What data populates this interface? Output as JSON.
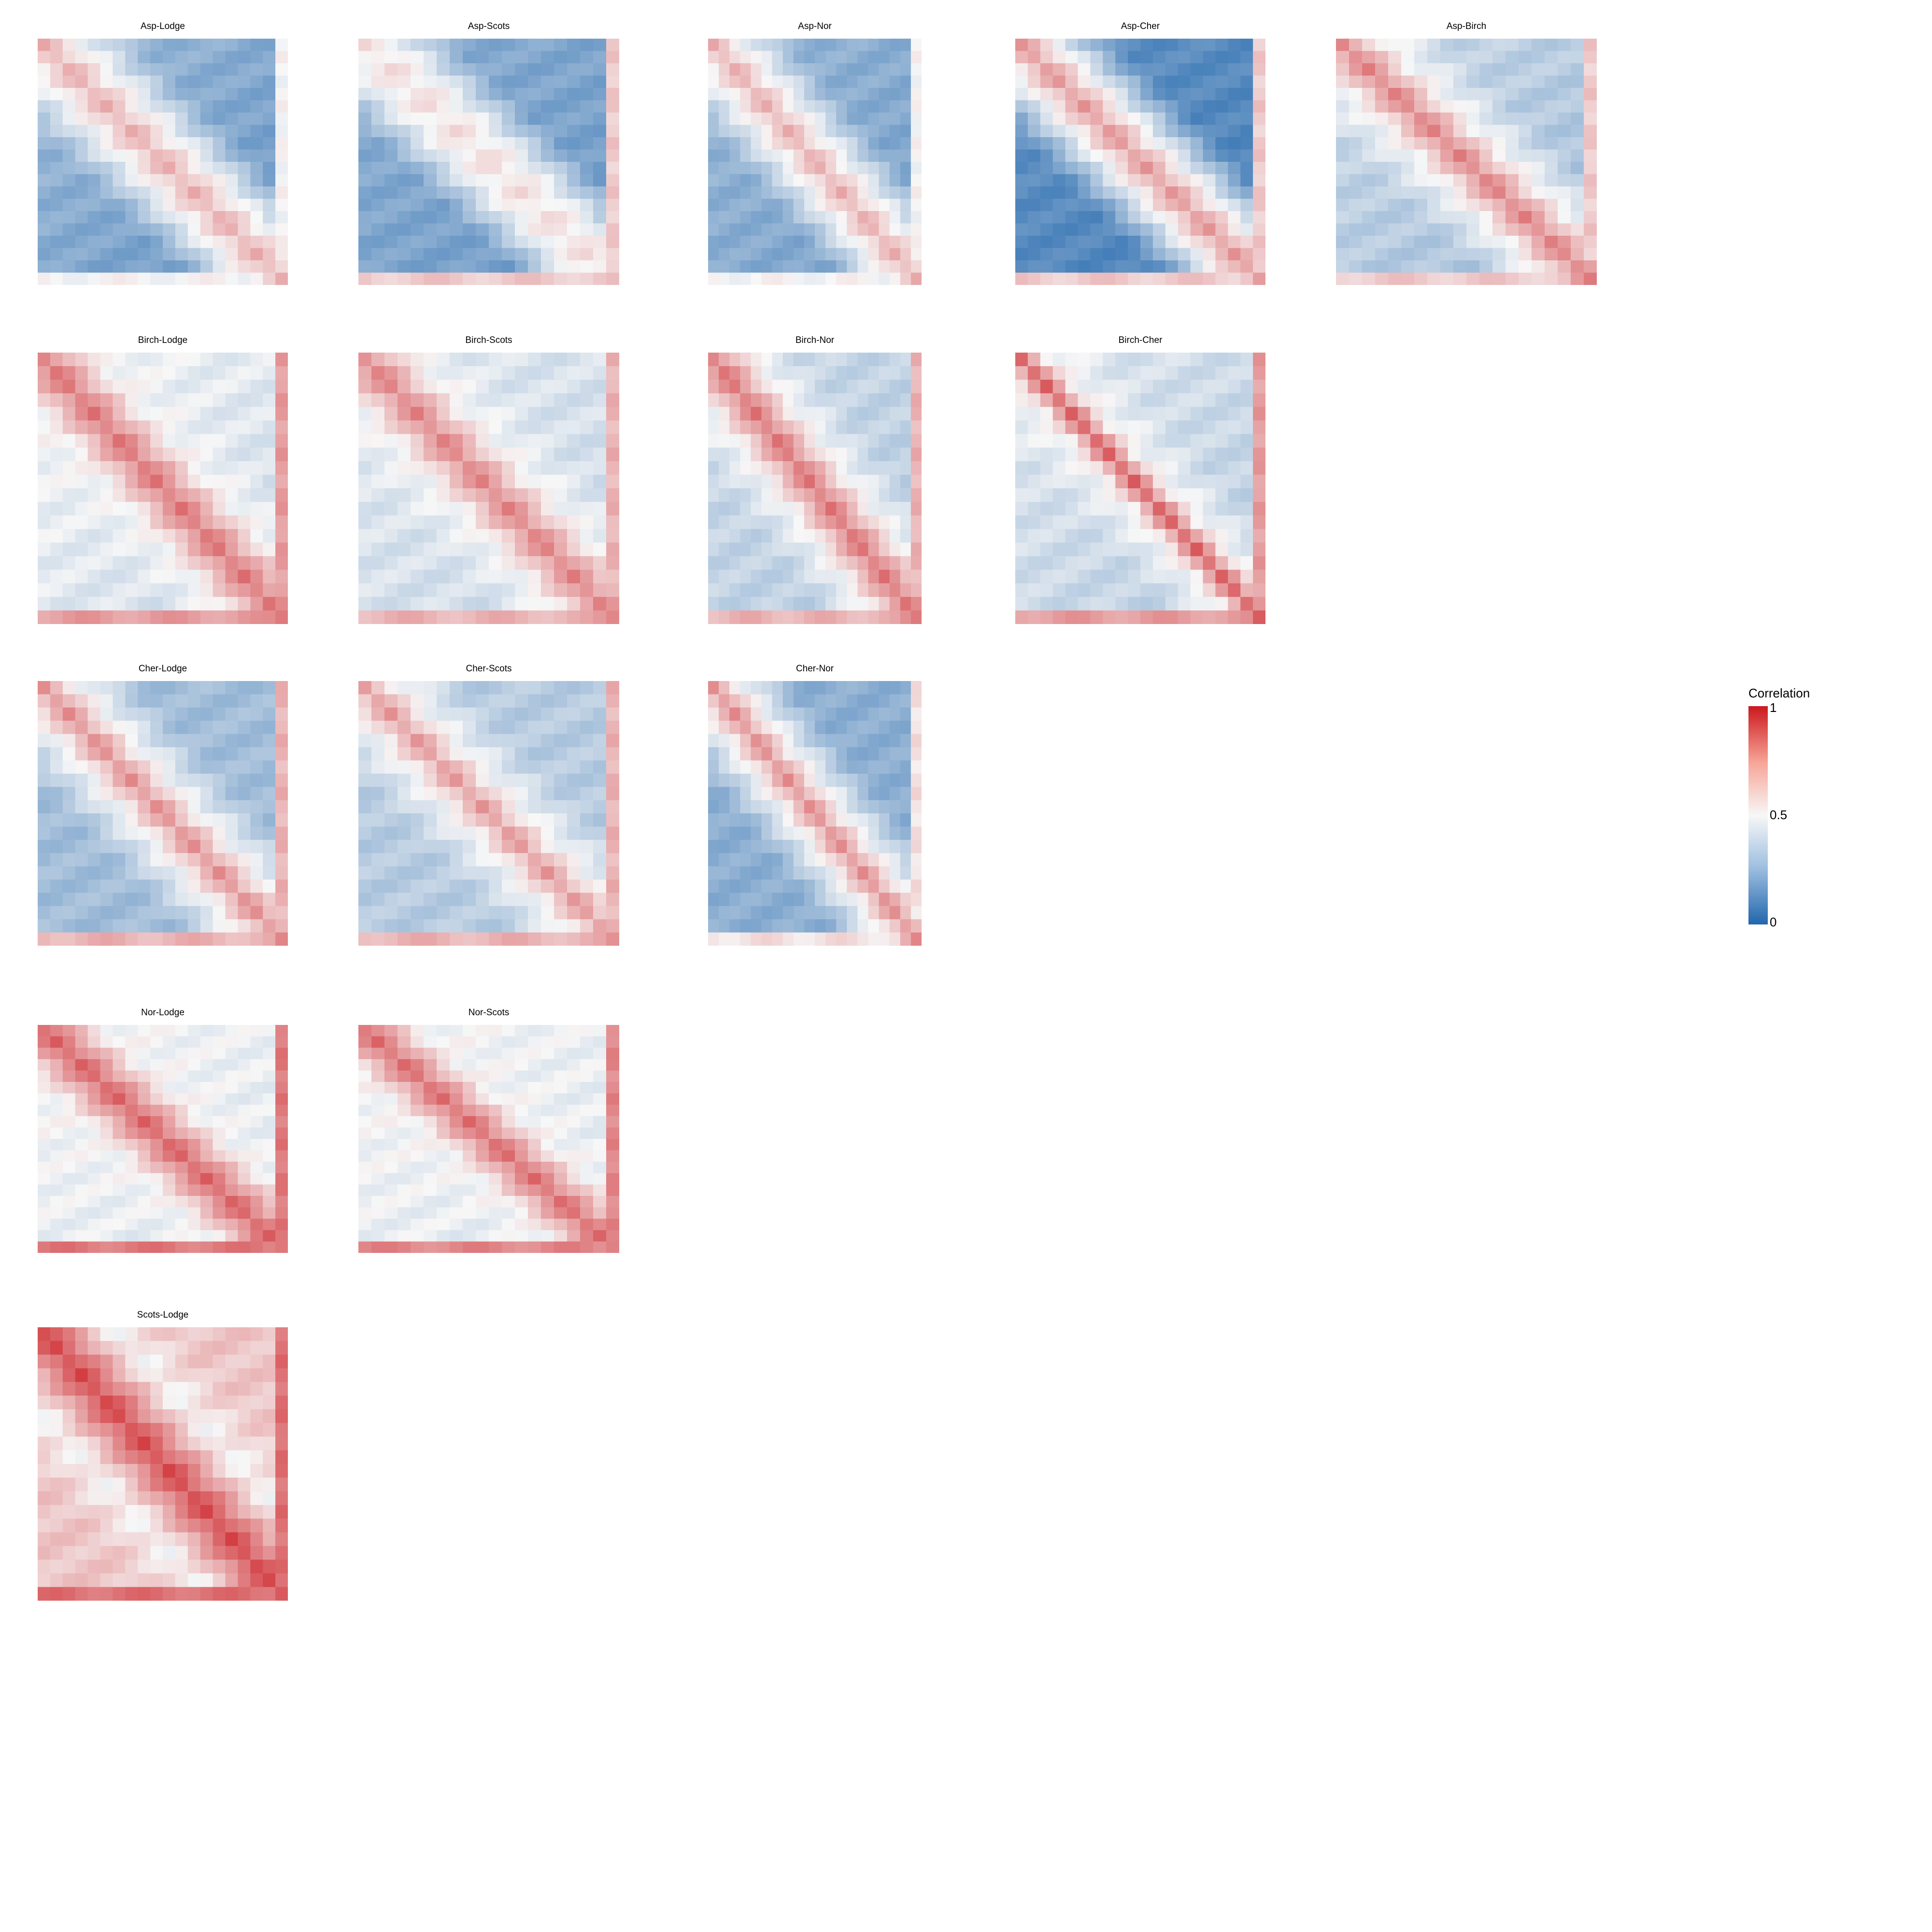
{
  "colors": {
    "low": "#2166ac",
    "mid": "#f7f7f7",
    "high": "#cb181d"
  },
  "legend": {
    "title": "Correlation",
    "max_label": "1",
    "mid_label": "0.5",
    "min_label": "0"
  },
  "chart_data": [
    {
      "type": "heatmap",
      "title": "Asp-Lodge",
      "grid": 20,
      "vmin": 0,
      "vmax": 1,
      "p": [
        0.15,
        0.65,
        0.15,
        0.3,
        0.16,
        0.5
      ]
    },
    {
      "type": "heatmap",
      "title": "Asp-Scots",
      "grid": 20,
      "vmin": 0,
      "vmax": 1,
      "p": [
        0.2,
        0.55,
        0.12,
        0.25,
        0.18,
        0.6
      ]
    },
    {
      "type": "heatmap",
      "title": "Asp-Nor",
      "grid": 20,
      "vmin": 0,
      "vmax": 1,
      "p": [
        0.18,
        0.65,
        0.14,
        0.28,
        0.2,
        0.5
      ]
    },
    {
      "type": "heatmap",
      "title": "Asp-Cher",
      "grid": 20,
      "vmin": 0,
      "vmax": 1,
      "p": [
        0.1,
        0.7,
        0.15,
        0.15,
        0.1,
        0.6
      ]
    },
    {
      "type": "heatmap",
      "title": "Asp-Birch",
      "grid": 20,
      "vmin": 0,
      "vmax": 1,
      "p": [
        0.3,
        0.75,
        0.18,
        0.4,
        0.3,
        0.6
      ]
    },
    {
      "type": "heatmap",
      "title": "Birch-Lodge",
      "grid": 20,
      "vmin": 0,
      "vmax": 1,
      "p": [
        0.4,
        0.78,
        0.22,
        0.5,
        0.4,
        0.7
      ]
    },
    {
      "type": "heatmap",
      "title": "Birch-Scots",
      "grid": 20,
      "vmin": 0,
      "vmax": 1,
      "p": [
        0.4,
        0.75,
        0.2,
        0.45,
        0.4,
        0.65
      ]
    },
    {
      "type": "heatmap",
      "title": "Birch-Nor",
      "grid": 20,
      "vmin": 0,
      "vmax": 1,
      "p": [
        0.4,
        0.78,
        0.2,
        0.4,
        0.35,
        0.65
      ]
    },
    {
      "type": "heatmap",
      "title": "Birch-Cher",
      "grid": 20,
      "vmin": 0,
      "vmax": 1,
      "p": [
        0.3,
        0.82,
        0.12,
        0.45,
        0.35,
        0.7
      ]
    },
    {
      "type": "heatmap",
      "title": "Cher-Lodge",
      "grid": 20,
      "vmin": 0,
      "vmax": 1,
      "p": [
        0.25,
        0.72,
        0.15,
        0.3,
        0.3,
        0.65
      ]
    },
    {
      "type": "heatmap",
      "title": "Cher-Scots",
      "grid": 20,
      "vmin": 0,
      "vmax": 1,
      "p": [
        0.3,
        0.7,
        0.14,
        0.35,
        0.35,
        0.65
      ]
    },
    {
      "type": "heatmap",
      "title": "Cher-Nor",
      "grid": 20,
      "vmin": 0,
      "vmax": 1,
      "p": [
        0.25,
        0.72,
        0.14,
        0.25,
        0.25,
        0.55
      ]
    },
    {
      "type": "heatmap",
      "title": "Nor-Lodge",
      "grid": 20,
      "vmin": 0,
      "vmax": 1,
      "p": [
        0.55,
        0.82,
        0.25,
        0.5,
        0.45,
        0.78
      ]
    },
    {
      "type": "heatmap",
      "title": "Nor-Scots",
      "grid": 20,
      "vmin": 0,
      "vmax": 1,
      "p": [
        0.55,
        0.8,
        0.22,
        0.5,
        0.45,
        0.75
      ]
    },
    {
      "type": "heatmap",
      "title": "Scots-Lodge",
      "grid": 20,
      "vmin": 0,
      "vmax": 1,
      "p": [
        0.62,
        0.88,
        0.3,
        0.62,
        0.6,
        0.8
      ]
    }
  ]
}
